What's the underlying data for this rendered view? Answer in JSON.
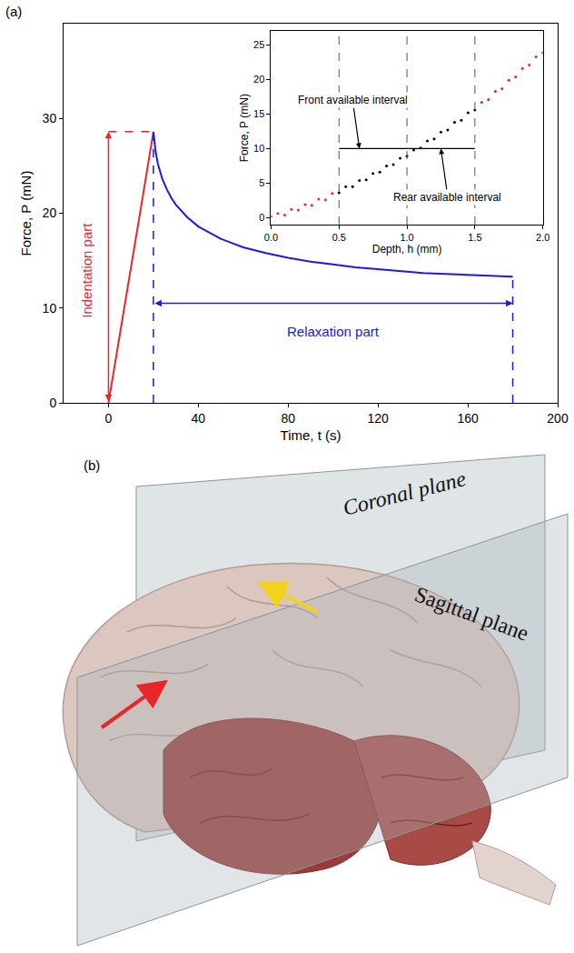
{
  "chart_data": [
    {
      "type": "line",
      "x_label": "Time, t (s)",
      "y_label": "Force, P (mN)",
      "xlim": [
        -20,
        200
      ],
      "xticks": [
        0,
        40,
        80,
        120,
        160,
        200
      ],
      "ylim": [
        0,
        40
      ],
      "yticks": [
        0,
        10,
        20,
        30
      ],
      "series": [
        {
          "color": "#e8262a",
          "x": [
            0,
            5,
            10,
            15,
            20
          ],
          "values": [
            0.0,
            7.0,
            14.2,
            21.4,
            28.6
          ]
        },
        {
          "color": "#1a1ae0",
          "x": [
            20,
            21,
            22,
            24,
            26,
            28,
            30,
            35,
            40,
            50,
            60,
            70,
            80,
            90,
            100,
            110,
            120,
            130,
            140,
            150,
            160,
            170,
            180
          ],
          "values": [
            28.6,
            26.5,
            25.2,
            23.6,
            22.5,
            21.6,
            20.9,
            19.6,
            18.6,
            17.3,
            16.4,
            15.8,
            15.3,
            14.9,
            14.6,
            14.3,
            14.1,
            13.9,
            13.7,
            13.6,
            13.5,
            13.4,
            13.3
          ]
        }
      ],
      "arrows": [
        {
          "x": [
            0,
            0
          ],
          "y": [
            0,
            28.6
          ],
          "color": "#e8262a",
          "text": "Indentation part",
          "text_x": -10,
          "text_y": 14
        },
        {
          "x": [
            20,
            180
          ],
          "y": [
            10.5,
            10.5
          ],
          "color": "#1a1ae0",
          "text": "Relaxation part",
          "text_x": 100,
          "text_y": 7.5
        }
      ]
    },
    {
      "type": "scatter",
      "x_label": "Depth, h (mm)",
      "y_label": "Force, P (mN)",
      "xlim": [
        0,
        2
      ],
      "xticks": [
        {
          "value": 0,
          "label": "0.0"
        },
        {
          "value": 0.5,
          "label": "0.5"
        },
        {
          "value": 1,
          "label": "1.0"
        },
        {
          "value": 1.5,
          "label": "1.5"
        },
        {
          "value": 2,
          "label": "2.0"
        }
      ],
      "ylim": [
        -1,
        27
      ],
      "yticks": [
        0,
        5,
        10,
        15,
        20,
        25
      ],
      "series": [
        {
          "color": "#e8262a",
          "x": [
            0,
            0.05,
            0.1,
            0.15,
            0.2,
            0.25,
            0.3,
            0.35,
            0.4,
            0.45
          ],
          "values": [
            0.2,
            0.6,
            0.4,
            1.2,
            1.1,
            1.9,
            1.8,
            2.7,
            2.6,
            3.5
          ]
        },
        {
          "color": "#000000",
          "x": [
            0.5,
            0.55,
            0.6,
            0.65,
            0.7,
            0.75,
            0.8,
            0.85,
            0.9,
            0.95,
            1.0,
            1.05,
            1.1,
            1.15,
            1.2,
            1.25,
            1.3,
            1.35,
            1.4,
            1.45,
            1.5
          ],
          "values": [
            3.6,
            4.5,
            4.5,
            5.4,
            5.5,
            6.4,
            6.6,
            7.5,
            7.7,
            8.6,
            8.9,
            9.8,
            10.1,
            11.1,
            11.4,
            12.4,
            12.7,
            13.8,
            14.1,
            15.2,
            15.6
          ]
        },
        {
          "color": "#e8262a",
          "x": [
            1.55,
            1.6,
            1.65,
            1.7,
            1.75,
            1.8,
            1.85,
            1.9,
            1.95,
            2.0
          ],
          "values": [
            16.7,
            17.1,
            18.3,
            18.7,
            19.9,
            20.4,
            21.6,
            22.1,
            23.3,
            23.9
          ]
        }
      ],
      "dashed_lines_x": [
        0.5,
        1.0,
        1.5
      ],
      "interval": {
        "x": [
          0.5,
          1.5
        ],
        "y": 10
      },
      "annotations": [
        {
          "text": "Front available interval",
          "x": 0.6,
          "y": 17,
          "arrow_to": [
            0.65,
            10
          ]
        },
        {
          "text": "Rear available interval",
          "x": 1.3,
          "y": 3,
          "arrow_to": [
            1.25,
            10
          ]
        }
      ]
    }
  ],
  "panel_labels": [
    "(a)",
    "(b)"
  ],
  "diagram": {
    "texts": [
      "Coronal plane",
      "Sagittal plane"
    ]
  }
}
